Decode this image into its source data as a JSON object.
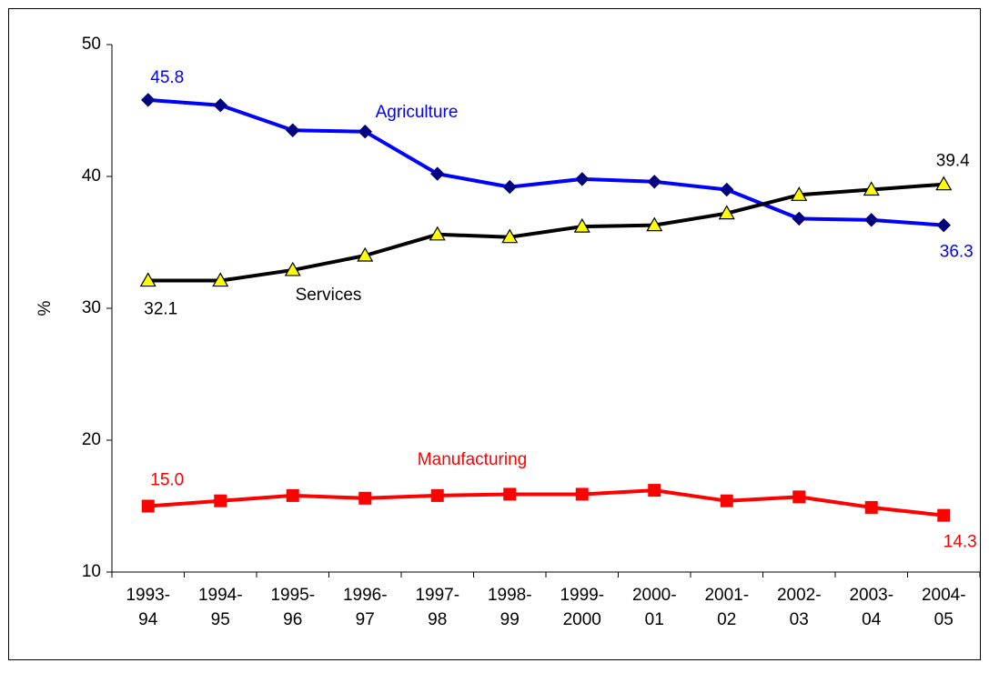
{
  "chart_data": {
    "type": "line",
    "y_label": "%",
    "categories": [
      "1993-94",
      "1994-95",
      "1995-96",
      "1996-97",
      "1997-98",
      "1998-99",
      "1999-2000",
      "2000-01",
      "2001-02",
      "2002-03",
      "2003-04",
      "2004-05"
    ],
    "series": [
      {
        "name": "Agriculture",
        "color": "#0000ff",
        "marker": "diamond",
        "marker_color": "#000080",
        "values": [
          45.8,
          45.4,
          43.5,
          43.4,
          40.2,
          39.2,
          39.8,
          39.6,
          39.0,
          36.8,
          36.7,
          36.3
        ],
        "value_labels": [
          "45.8",
          null,
          null,
          null,
          null,
          null,
          null,
          null,
          null,
          null,
          null,
          "36.3"
        ]
      },
      {
        "name": "Services",
        "color": "#000000",
        "marker": "triangle",
        "marker_color": "#ffff00",
        "values": [
          32.1,
          32.1,
          32.9,
          34.0,
          35.6,
          35.4,
          36.2,
          36.3,
          37.2,
          38.6,
          39.0,
          39.4
        ],
        "value_labels": [
          "32.1",
          null,
          null,
          null,
          null,
          null,
          null,
          null,
          null,
          null,
          null,
          "39.4"
        ]
      },
      {
        "name": "Manufacturing",
        "color": "#ff0000",
        "marker": "square",
        "marker_color": "#ff0000",
        "values": [
          15.0,
          15.4,
          15.8,
          15.6,
          15.8,
          15.9,
          15.9,
          16.2,
          15.4,
          15.7,
          14.9,
          14.3
        ],
        "value_labels": [
          "15.0",
          null,
          null,
          null,
          null,
          null,
          null,
          null,
          null,
          null,
          null,
          "14.3"
        ]
      }
    ],
    "ylim": [
      10,
      50
    ],
    "yticks": [
      10,
      20,
      30,
      40,
      50
    ],
    "grid": false
  }
}
